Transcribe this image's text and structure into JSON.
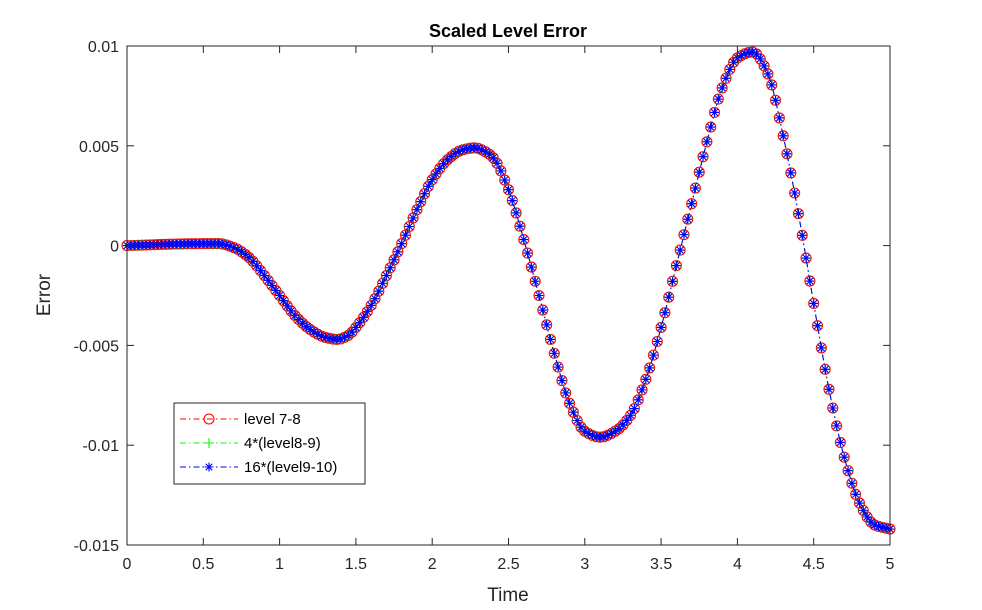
{
  "chart_data": {
    "type": "line",
    "title": "Scaled Level Error",
    "xlabel": "Time",
    "ylabel": "Error",
    "xlim": [
      0,
      5
    ],
    "ylim": [
      -0.015,
      0.01
    ],
    "xticks": [
      0,
      0.5,
      1,
      1.5,
      2,
      2.5,
      3,
      3.5,
      4,
      4.5,
      5
    ],
    "xtick_labels": [
      "0",
      "0.5",
      "1",
      "1.5",
      "2",
      "2.5",
      "3",
      "3.5",
      "4",
      "4.5",
      "5"
    ],
    "yticks": [
      -0.015,
      -0.01,
      -0.005,
      0,
      0.005,
      0.01
    ],
    "ytick_labels": [
      "-0.015",
      "-0.01",
      "-0.005",
      "0",
      "0.005",
      "0.01"
    ],
    "grid": false,
    "legend_position": "lower-left",
    "x": [
      0,
      0.5,
      0.6,
      0.7,
      0.8,
      0.9,
      1.0,
      1.1,
      1.2,
      1.3,
      1.38,
      1.45,
      1.5,
      1.6,
      1.7,
      1.8,
      1.9,
      2.0,
      2.1,
      2.2,
      2.28,
      2.35,
      2.4,
      2.5,
      2.6,
      2.7,
      2.8,
      2.9,
      3.0,
      3.1,
      3.2,
      3.3,
      3.4,
      3.5,
      3.6,
      3.7,
      3.8,
      3.9,
      4.0,
      4.1,
      4.2,
      4.3,
      4.4,
      4.5,
      4.6,
      4.7,
      4.8,
      4.9,
      5.0
    ],
    "series": [
      {
        "name": "level 7-8",
        "color": "#ff0000",
        "marker": "circle",
        "line_style": "dash-dot",
        "values": [
          0,
          0.0001,
          0.0001,
          -0.0001,
          -0.0006,
          -0.0015,
          -0.0025,
          -0.0035,
          -0.0042,
          -0.0046,
          -0.0047,
          -0.0045,
          -0.0041,
          -0.003,
          -0.0015,
          0.0001,
          0.0018,
          0.0033,
          0.0043,
          0.0048,
          0.0049,
          0.0047,
          0.0044,
          0.0028,
          0.0003,
          -0.0025,
          -0.0054,
          -0.0079,
          -0.0093,
          -0.0096,
          -0.0093,
          -0.0085,
          -0.0067,
          -0.0041,
          -0.001,
          0.0021,
          0.0052,
          0.0079,
          0.0094,
          0.0097,
          0.0086,
          0.0055,
          0.0016,
          -0.0029,
          -0.0072,
          -0.0106,
          -0.0129,
          -0.014,
          -0.0142
        ]
      },
      {
        "name": "4*(level8-9)",
        "color": "#00ff00",
        "marker": "plus",
        "line_style": "dash-dot",
        "values": [
          0,
          0.0001,
          0.0001,
          -0.0001,
          -0.0006,
          -0.0015,
          -0.0025,
          -0.0035,
          -0.0042,
          -0.0046,
          -0.0047,
          -0.0045,
          -0.0041,
          -0.003,
          -0.0015,
          0.0001,
          0.0018,
          0.0033,
          0.0043,
          0.0048,
          0.0049,
          0.0047,
          0.0044,
          0.0028,
          0.0003,
          -0.0025,
          -0.0054,
          -0.0079,
          -0.0093,
          -0.0096,
          -0.0093,
          -0.0085,
          -0.0067,
          -0.0041,
          -0.001,
          0.0021,
          0.0052,
          0.0079,
          0.0094,
          0.0097,
          0.0086,
          0.0055,
          0.0016,
          -0.0029,
          -0.0072,
          -0.0106,
          -0.0129,
          -0.014,
          -0.0142
        ]
      },
      {
        "name": "16*(level9-10)",
        "color": "#0000ff",
        "marker": "asterisk",
        "line_style": "dash-dot",
        "values": [
          0,
          0.0001,
          0.0001,
          -0.0001,
          -0.0006,
          -0.0015,
          -0.0025,
          -0.0035,
          -0.0042,
          -0.0046,
          -0.0047,
          -0.0045,
          -0.0041,
          -0.003,
          -0.0015,
          0.0001,
          0.0018,
          0.0033,
          0.0043,
          0.0048,
          0.0049,
          0.0047,
          0.0044,
          0.0028,
          0.0003,
          -0.0025,
          -0.0054,
          -0.0079,
          -0.0093,
          -0.0096,
          -0.0093,
          -0.0085,
          -0.0067,
          -0.0041,
          -0.001,
          0.0021,
          0.0052,
          0.0079,
          0.0094,
          0.0097,
          0.0086,
          0.0055,
          0.0016,
          -0.0029,
          -0.0072,
          -0.0106,
          -0.0129,
          -0.014,
          -0.0142
        ]
      }
    ]
  }
}
